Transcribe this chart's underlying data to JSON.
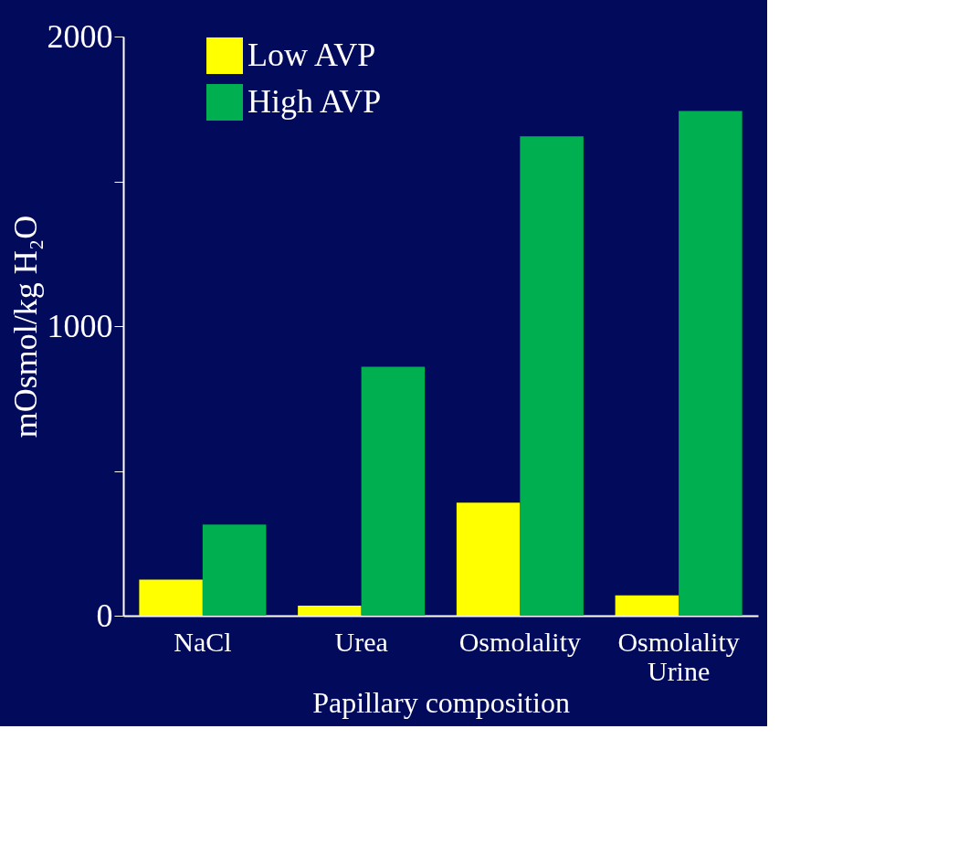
{
  "chart_data": {
    "type": "bar",
    "categories": [
      "NaCl",
      "Urea",
      "Osmolality",
      "Osmolality\nUrine"
    ],
    "series": [
      {
        "name": "Low AVP",
        "color": "#ffff00",
        "values": [
          125,
          35,
          390,
          70
        ]
      },
      {
        "name": "High AVP",
        "color": "#00b050",
        "values": [
          315,
          860,
          1655,
          1743
        ]
      }
    ],
    "xlabel": "Papillary composition",
    "ylabel": "mOsmol/kg H₂O",
    "ylim": [
      0,
      2000
    ],
    "yticks": [
      0,
      {
        "value": 500,
        "label": null
      },
      1000,
      {
        "value": 1500,
        "label": null
      },
      2000
    ],
    "grid": false,
    "legend": "top left"
  }
}
